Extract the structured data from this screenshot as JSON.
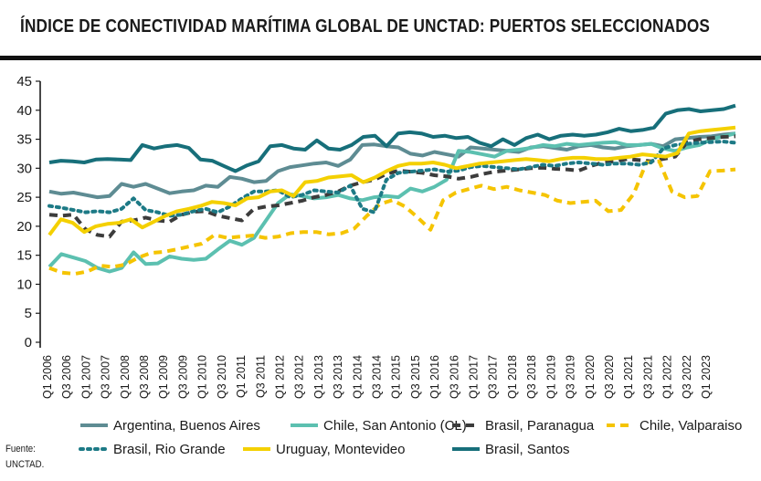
{
  "title": "ÍNDICE DE CONECTIVIDAD MARÍTIMA GLOBAL DE UNCTAD: PUERTOS SELECCIONADOS",
  "source_label": "Fuente:",
  "source_name": "UNCTAD.",
  "chart_data": {
    "type": "line",
    "title": "ÍNDICE DE CONECTIVIDAD MARÍTIMA GLOBAL DE UNCTAD: PUERTOS SELECCIONADOS",
    "xlabel": "",
    "ylabel": "",
    "ylim": [
      0,
      45
    ],
    "yticks": [
      0,
      5,
      10,
      15,
      20,
      25,
      30,
      35,
      40,
      45
    ],
    "grid": false,
    "legend_position": "bottom",
    "x_tick_labels": [
      "Q1 2006",
      "Q3 2006",
      "Q1 2007",
      "Q3 2007",
      "Q1 2008",
      "Q3 2008",
      "Q1 2009",
      "Q3 2009",
      "Q1 2010",
      "Q3 2010",
      "Q1 2011",
      "Q3 2011",
      "Q1 2012",
      "Q3 2012",
      "Q1 2013",
      "Q3 2013",
      "Q1 2014",
      "Q3 2014",
      "Q1 2015",
      "Q3 2015",
      "Q1 2016",
      "Q3 2016",
      "Q1 2017",
      "Q3 2017",
      "Q1 2018",
      "Q3 2018",
      "Q1 2019",
      "Q3 2019",
      "Q1 2020",
      "Q3 2020",
      "Q1 2021",
      "Q3 2021",
      "Q1 2022",
      "Q3 2022",
      "Q1 2023"
    ],
    "series": [
      {
        "name": "Argentina, Buenos Aires",
        "color": "#5e8c93",
        "dash": "solid",
        "values": [
          26,
          25.6,
          25.8,
          25.4,
          25,
          25.2,
          27.3,
          26.8,
          27.3,
          26.5,
          25.7,
          26,
          26.2,
          27,
          26.8,
          28.5,
          28.2,
          27.6,
          27.8,
          29.5,
          30.2,
          30.5,
          30.8,
          31,
          30.4,
          31.5,
          34,
          34.1,
          33.8,
          33.6,
          32.5,
          32.2,
          32.8,
          32.4,
          32,
          33.6,
          33.4,
          33.2,
          33,
          32.8,
          33.6,
          33.8,
          33.5,
          33.2,
          33.8,
          34,
          33.6,
          33.4,
          33.8,
          34,
          34.2,
          33.8,
          35,
          35.2,
          35.4,
          35.5,
          35.8,
          36
        ]
      },
      {
        "name": "Chile, San Antonio (CL)",
        "color": "#5cc0b0",
        "dash": "solid",
        "values": [
          13,
          15.2,
          14.6,
          14,
          12.8,
          12.2,
          12.8,
          15.5,
          13.5,
          13.6,
          14.8,
          14.4,
          14.2,
          14.4,
          16,
          17.5,
          16.8,
          18,
          21,
          24,
          25.5,
          25.2,
          24.8,
          25,
          25.4,
          24.8,
          24.5,
          25,
          25.2,
          25,
          26.5,
          26,
          26.8,
          28,
          33,
          32.8,
          32.4,
          32,
          33,
          33.2,
          33.5,
          34,
          33.8,
          34.2,
          34,
          34.2,
          34.4,
          34.5,
          34,
          34,
          34.2,
          33.4,
          33,
          33.6,
          34,
          35,
          35.5,
          36
        ]
      },
      {
        "name": "Brasil, Paranagua",
        "color": "#3c3c3c",
        "dash": "dash",
        "values": [
          22,
          21.8,
          22,
          19.5,
          18.5,
          18.2,
          20.8,
          21,
          21.5,
          21,
          20.8,
          22,
          22.5,
          22.6,
          21.8,
          21.4,
          21,
          23,
          23.4,
          23.6,
          24,
          24.4,
          25,
          25.4,
          26,
          27,
          27.6,
          28,
          29,
          29.6,
          29.4,
          29.2,
          28.8,
          28.6,
          28.2,
          28.5,
          29,
          29.4,
          29.6,
          29.8,
          30,
          30.1,
          29.9,
          29.8,
          29.6,
          30.4,
          31,
          31.2,
          31.6,
          31.4,
          31.2,
          31.6,
          32,
          34.5,
          35,
          35.2,
          35.4,
          35.5
        ]
      },
      {
        "name": "Chile, Valparaiso",
        "color": "#f5c400",
        "dash": "dash",
        "values": [
          12.8,
          12,
          11.8,
          12.2,
          13.2,
          13,
          13.4,
          14.6,
          15.4,
          15.6,
          16,
          16.5,
          17,
          18.5,
          18,
          18.2,
          18.4,
          18,
          18.2,
          18.8,
          19,
          19,
          18.6,
          18.8,
          19.6,
          21.8,
          23.8,
          24.5,
          23.4,
          21.5,
          19.4,
          24.5,
          25.8,
          26.4,
          27,
          26.4,
          26.8,
          26.2,
          25.8,
          25.4,
          24.4,
          24,
          24.2,
          24.4,
          22.6,
          22.8,
          25.6,
          31,
          31.2,
          26,
          25,
          25.2,
          29.5,
          29.6,
          29.8
        ]
      },
      {
        "name": "Brasil, Rio Grande",
        "color": "#1d7a86",
        "dash": "dot",
        "values": [
          23.5,
          23.2,
          22.8,
          22.4,
          22.6,
          22.4,
          23,
          24.8,
          22.8,
          22.4,
          21.8,
          22,
          22.6,
          23,
          22.4,
          23.4,
          24.8,
          26,
          26,
          26.2,
          25,
          25.4,
          26.2,
          26,
          25.8,
          27,
          23,
          22.4,
          28,
          29.2,
          29.4,
          29.6,
          29.8,
          29.4,
          29.6,
          30.2,
          30.4,
          30.2,
          30,
          29.8,
          30.2,
          30.6,
          30.4,
          30.8,
          31,
          30.8,
          30.6,
          30.8,
          30.8,
          30.6,
          31,
          33.4,
          34,
          34.2,
          34.4,
          34.5,
          34.6,
          34.4
        ]
      },
      {
        "name": "Uruguay, Montevideo",
        "color": "#f4d000",
        "dash": "solid",
        "values": [
          18.5,
          21.2,
          20.6,
          19,
          20,
          20.4,
          20.6,
          21.2,
          19.8,
          20.8,
          21.8,
          22.6,
          23,
          23.5,
          24.2,
          24,
          23.6,
          24.8,
          25,
          26,
          26.2,
          25.2,
          27.6,
          27.8,
          28.4,
          28.6,
          28.8,
          27.6,
          28.4,
          29.5,
          30.4,
          30.8,
          30.8,
          31,
          30.6,
          30,
          30.4,
          30.8,
          31,
          31.2,
          31.4,
          31.6,
          31.4,
          31.2,
          31.6,
          31.8,
          31.8,
          31.6,
          31.6,
          31.8,
          32,
          32.4,
          32.2,
          32,
          32.6,
          36,
          36.4,
          36.6,
          36.8,
          37
        ]
      },
      {
        "name": "Brasil, Santos",
        "color": "#176f7a",
        "dash": "solid",
        "values": [
          31,
          31.3,
          31.2,
          31,
          31.5,
          31.6,
          31.5,
          31.4,
          34,
          33.4,
          33.8,
          34,
          33.5,
          31.5,
          31.3,
          30.4,
          29.5,
          30.5,
          31.2,
          33.8,
          34,
          33.4,
          33.2,
          34.8,
          33.4,
          33.2,
          34,
          35.4,
          35.6,
          33.8,
          36,
          36.2,
          36,
          35.4,
          35.6,
          35.2,
          35.4,
          34.4,
          33.8,
          35,
          34,
          35.2,
          35.8,
          35,
          35.6,
          35.8,
          35.6,
          35.8,
          36.2,
          36.8,
          36.4,
          36.6,
          37,
          39.4,
          40,
          40.2,
          39.8,
          40,
          40.2,
          40.8
        ]
      }
    ]
  }
}
